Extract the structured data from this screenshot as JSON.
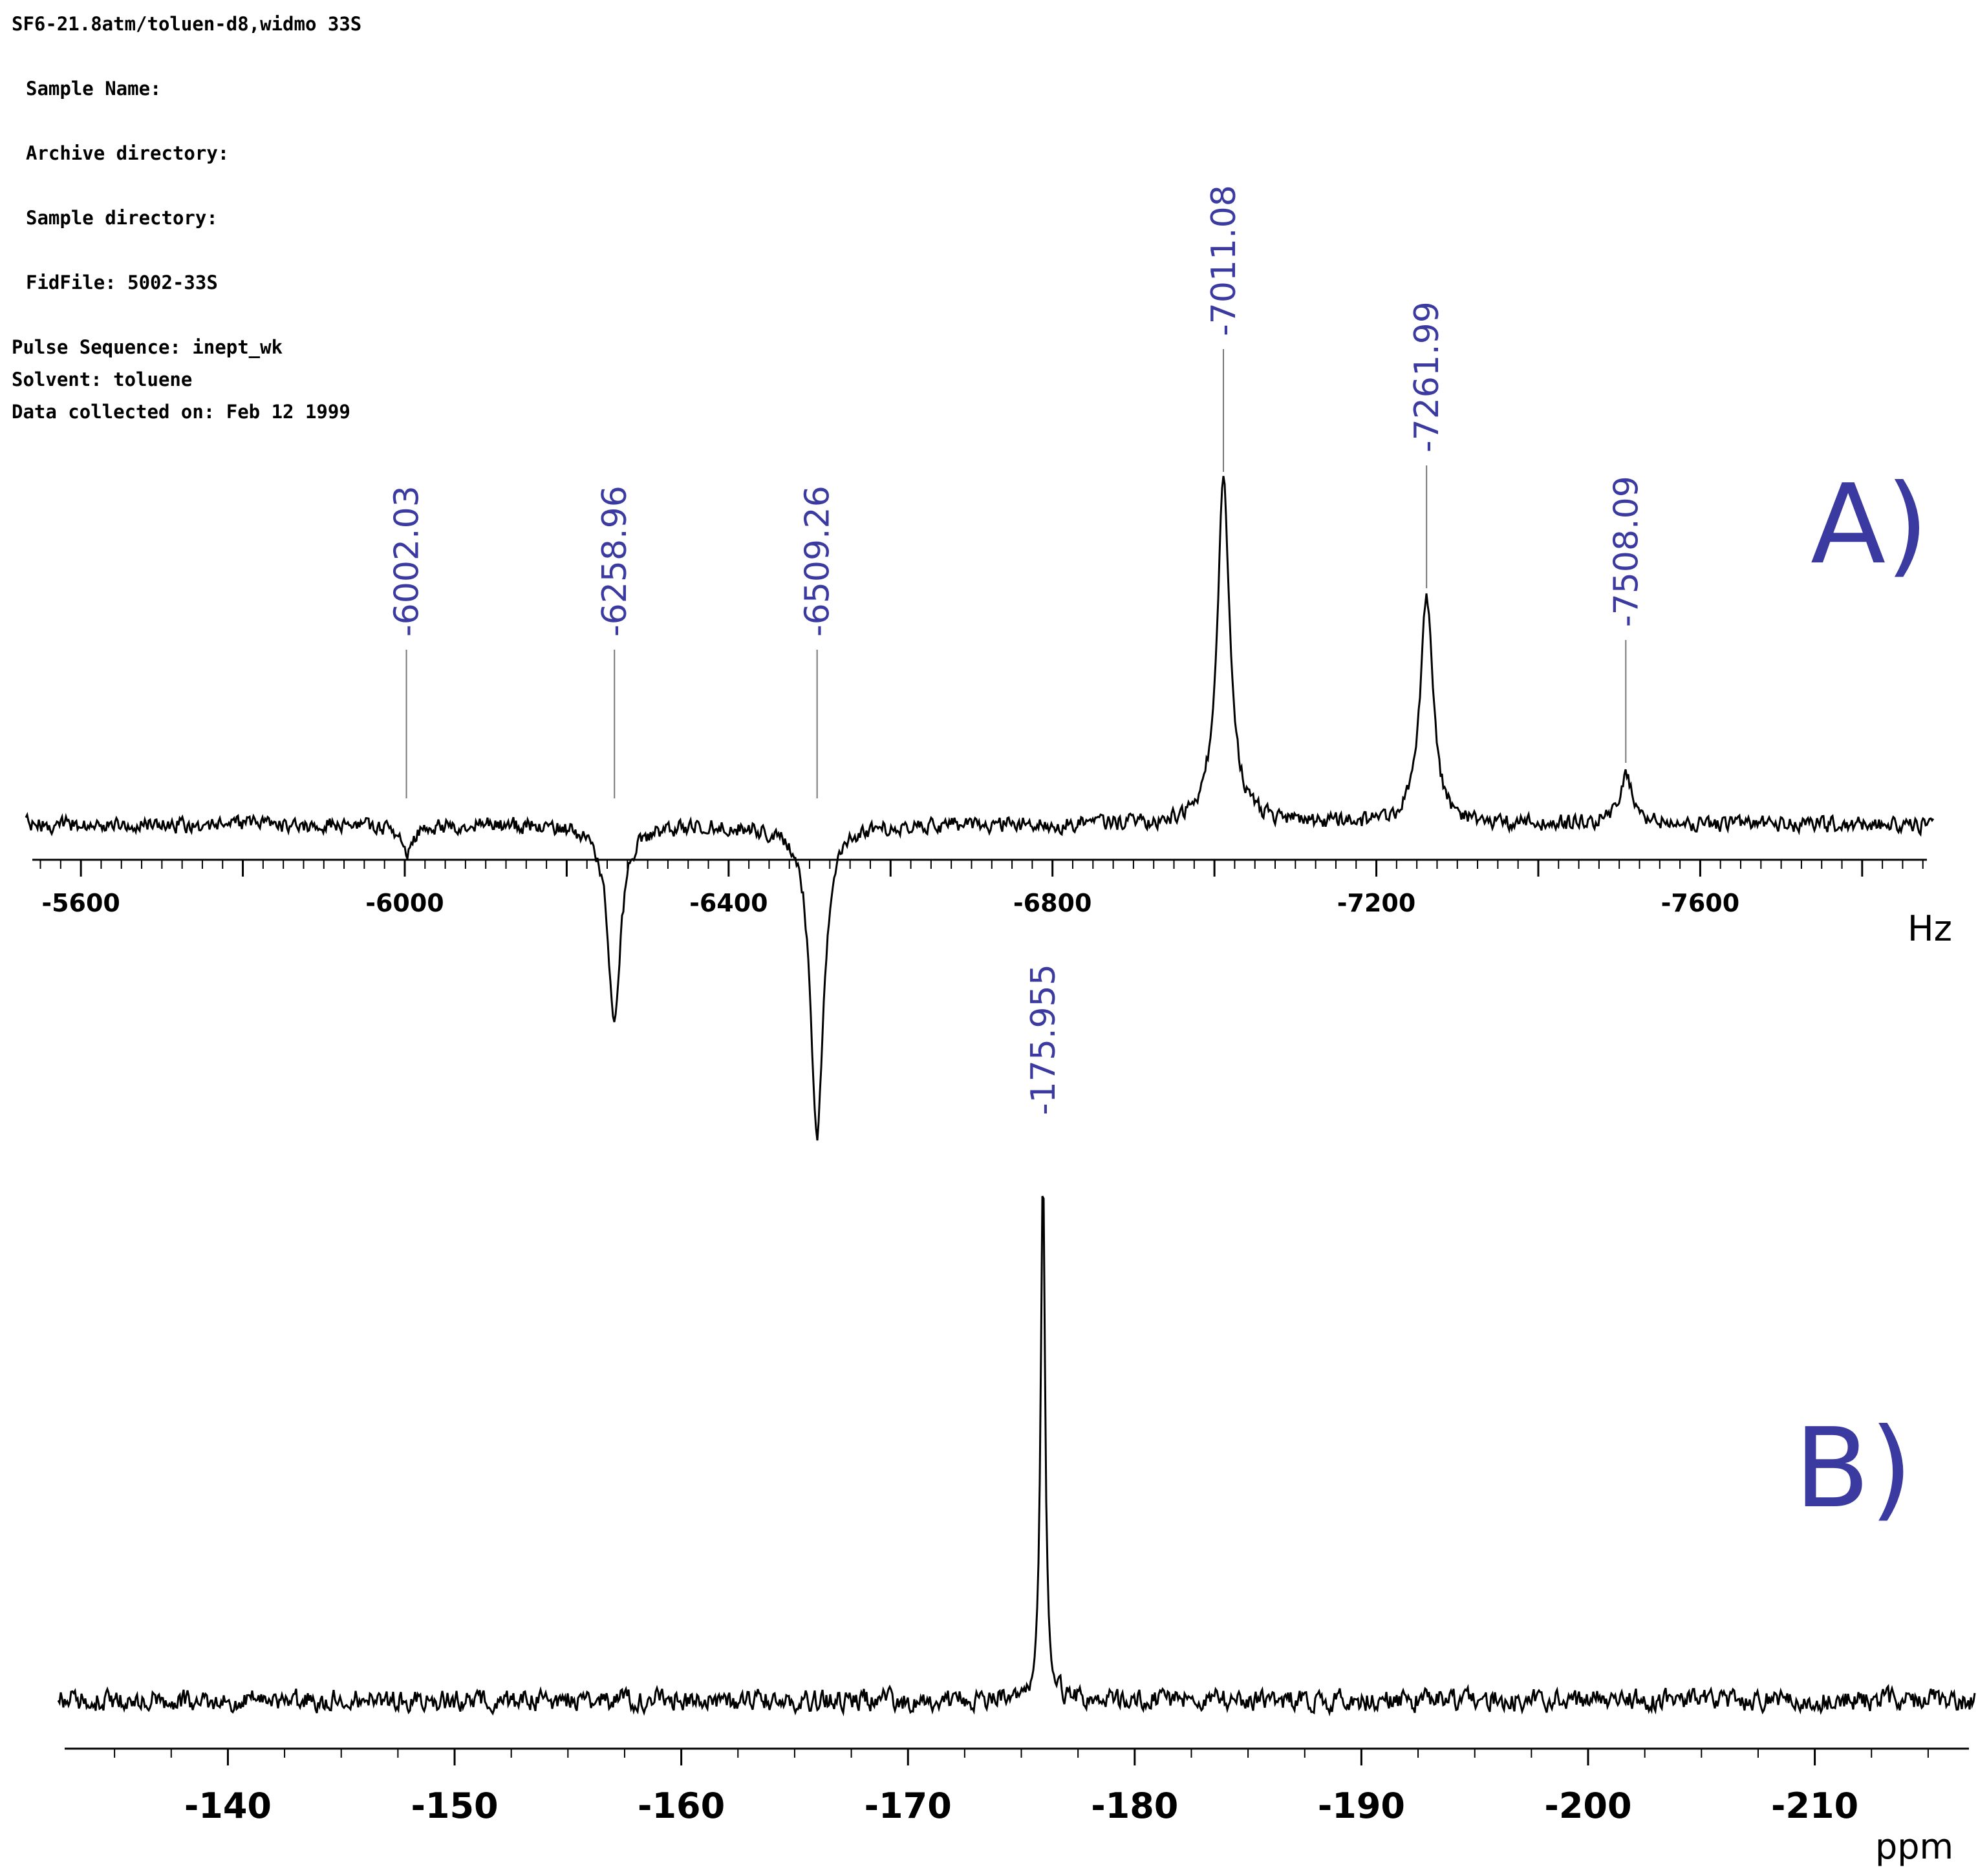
{
  "header": {
    "title": "SF6-21.8atm/toluen-d8,widmo 33S",
    "sample_name": "Sample Name:",
    "archive_directory": "Archive directory:",
    "sample_directory": "Sample directory:",
    "fidfile": "FidFile: 5002-33S",
    "pulse_sequence": "Pulse Sequence: inept_wk",
    "solvent": "Solvent: toluene",
    "data_collected": "Data collected on: Feb 12 1999"
  },
  "colors": {
    "annotation": "#3a3aa0",
    "trace": "#000000",
    "peak_marker": "#777777"
  },
  "chart_data": [
    {
      "type": "line",
      "panel_label": "A)",
      "xlabel": "Hz",
      "xlim": [
        -5540,
        -7880
      ],
      "x_reversed": true,
      "x_ticks": [
        -5600,
        -6000,
        -6400,
        -6800,
        -7200,
        -7600
      ],
      "peaks": [
        {
          "x": -6002.03,
          "label": "-6002.03",
          "intensity": -0.15
        },
        {
          "x": -6258.96,
          "label": "-6258.96",
          "intensity": -1.0
        },
        {
          "x": -6509.26,
          "label": "-6509.26",
          "intensity": -1.6
        },
        {
          "x": -7011.08,
          "label": "-7011.08",
          "intensity": 1.75
        },
        {
          "x": -7261.99,
          "label": "-7261.99",
          "intensity": 1.15
        },
        {
          "x": -7508.09,
          "label": "-7508.09",
          "intensity": 0.25
        }
      ],
      "grid": false
    },
    {
      "type": "line",
      "panel_label": "B)",
      "xlabel": "ppm",
      "xlim": [
        -132.8,
        -216.8
      ],
      "x_reversed": true,
      "x_ticks": [
        -140,
        -150,
        -160,
        -170,
        -180,
        -190,
        -200,
        -210
      ],
      "peaks": [
        {
          "x": -175.955,
          "label": "-175.955",
          "intensity": 3.3
        }
      ],
      "grid": false
    }
  ]
}
